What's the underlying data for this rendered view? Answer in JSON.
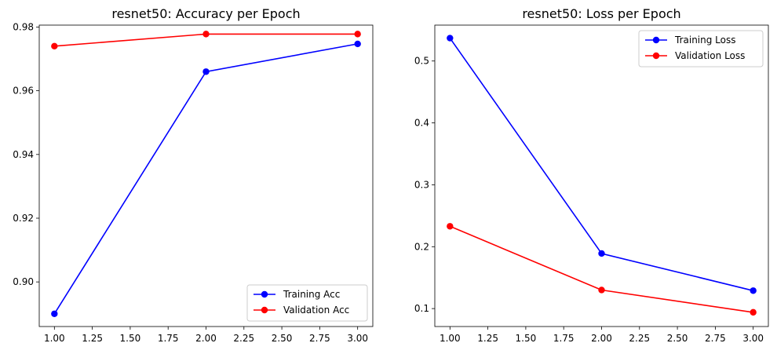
{
  "chart_data": [
    {
      "type": "line",
      "title": "resnet50: Accuracy per Epoch",
      "xlabel": "",
      "ylabel": "",
      "xlim": [
        0.9,
        3.1
      ],
      "ylim": [
        0.886,
        0.9806
      ],
      "xticks": [
        1.0,
        1.25,
        1.5,
        1.75,
        2.0,
        2.25,
        2.5,
        2.75,
        3.0
      ],
      "xtick_labels": [
        "1.00",
        "1.25",
        "1.50",
        "1.75",
        "2.00",
        "2.25",
        "2.50",
        "2.75",
        "3.00"
      ],
      "yticks": [
        0.9,
        0.92,
        0.94,
        0.96,
        0.98
      ],
      "ytick_labels": [
        "0.90",
        "0.92",
        "0.94",
        "0.96",
        "0.98"
      ],
      "grid": false,
      "legend_position": "lower-right",
      "x": [
        1,
        2,
        3
      ],
      "series": [
        {
          "name": "Training Acc",
          "color": "#0000ff",
          "marker": "circle",
          "values": [
            0.89,
            0.966,
            0.9747
          ]
        },
        {
          "name": "Validation Acc",
          "color": "#ff0000",
          "marker": "circle",
          "values": [
            0.974,
            0.9778,
            0.9778
          ]
        }
      ]
    },
    {
      "type": "line",
      "title": "resnet50: Loss per Epoch",
      "xlabel": "",
      "ylabel": "",
      "xlim": [
        0.9,
        3.1
      ],
      "ylim": [
        0.071,
        0.558
      ],
      "xticks": [
        1.0,
        1.25,
        1.5,
        1.75,
        2.0,
        2.25,
        2.5,
        2.75,
        3.0
      ],
      "xtick_labels": [
        "1.00",
        "1.25",
        "1.50",
        "1.75",
        "2.00",
        "2.25",
        "2.50",
        "2.75",
        "3.00"
      ],
      "yticks": [
        0.1,
        0.2,
        0.3,
        0.4,
        0.5
      ],
      "ytick_labels": [
        "0.1",
        "0.2",
        "0.3",
        "0.4",
        "0.5"
      ],
      "grid": false,
      "legend_position": "upper-right",
      "x": [
        1,
        2,
        3
      ],
      "series": [
        {
          "name": "Training Loss",
          "color": "#0000ff",
          "marker": "circle",
          "values": [
            0.537,
            0.189,
            0.129
          ]
        },
        {
          "name": "Validation Loss",
          "color": "#ff0000",
          "marker": "circle",
          "values": [
            0.233,
            0.13,
            0.094
          ]
        }
      ]
    }
  ]
}
